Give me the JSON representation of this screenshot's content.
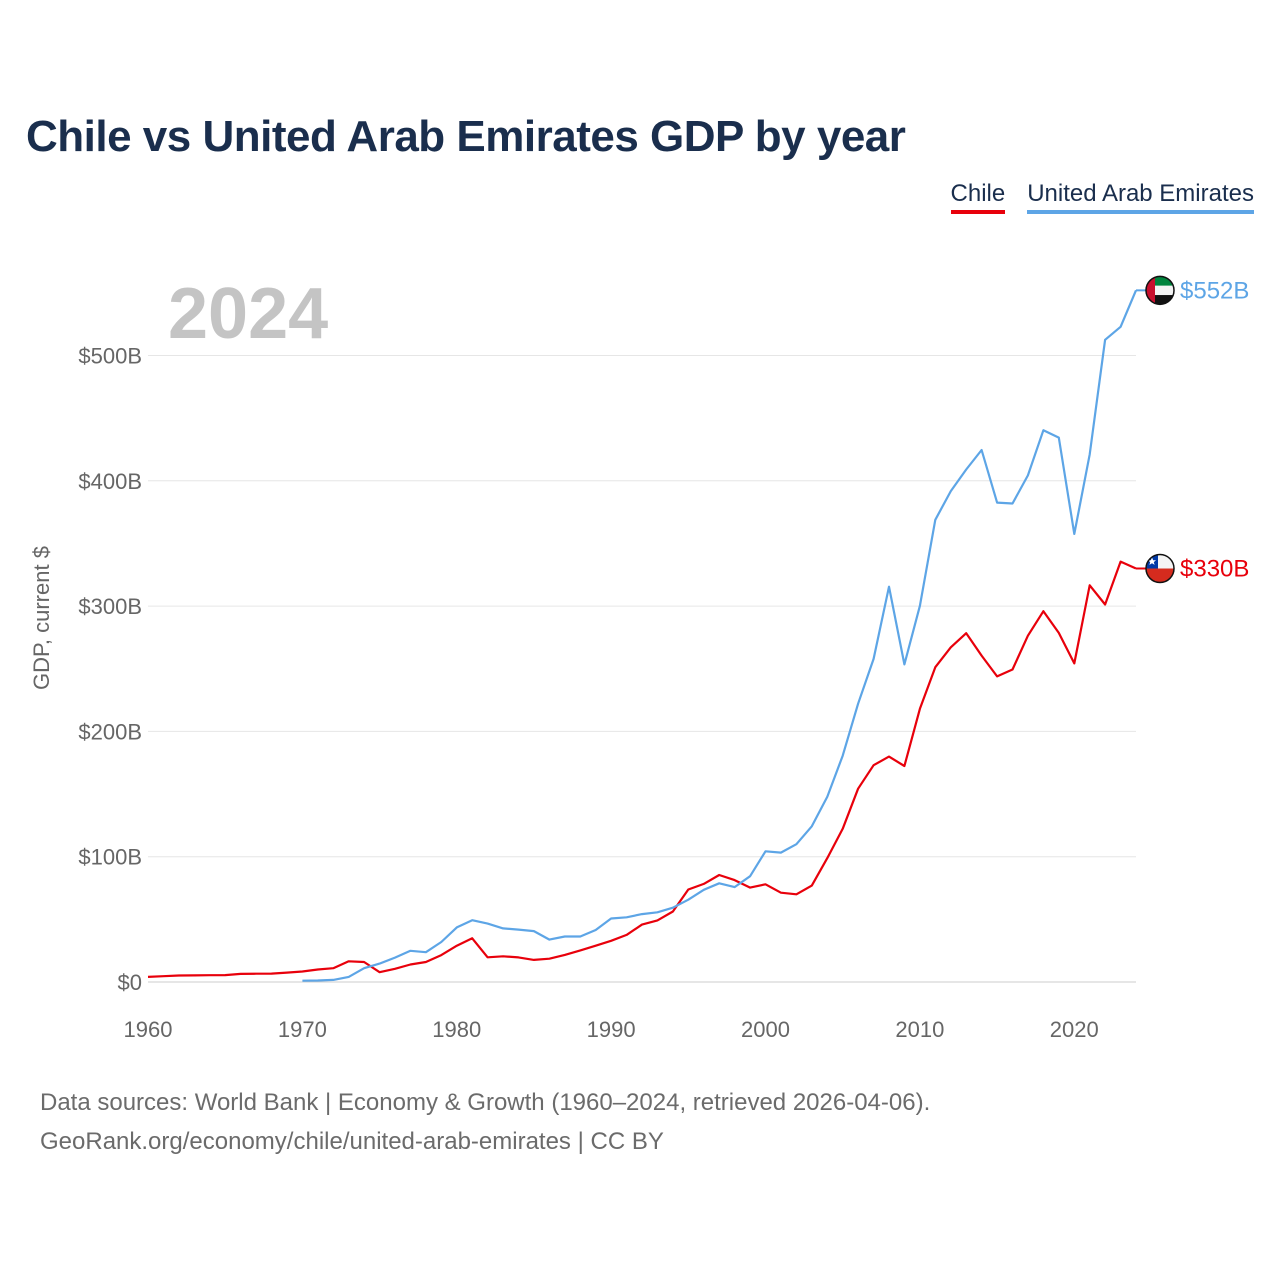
{
  "title": "Chile vs United Arab Emirates GDP by year",
  "legend": [
    {
      "name": "Chile",
      "color": "#e8000b"
    },
    {
      "name": "United Arab Emirates",
      "color": "#5da5e6"
    }
  ],
  "year_label": "2024",
  "footer": {
    "line1": "Data sources: World Bank | Economy & Growth (1960–2024, retrieved 2026-04-06).",
    "line2": "GeoRank.org/economy/chile/united-arab-emirates | CC BY"
  },
  "chart_data": {
    "type": "line",
    "title": "Chile vs United Arab Emirates GDP by year",
    "xlabel": "",
    "ylabel": "GDP, current $",
    "xlim": [
      1960,
      2024
    ],
    "ylim": [
      0,
      550
    ],
    "unit": "billion USD",
    "xticks": [
      1960,
      1970,
      1980,
      1990,
      2000,
      2010,
      2020
    ],
    "xtick_labels": [
      "1960",
      "1970",
      "1980",
      "1990",
      "2000",
      "2010",
      "2020"
    ],
    "yticks": [
      0,
      100,
      200,
      300,
      400,
      500
    ],
    "ytick_labels": [
      "$0",
      "$100B",
      "$200B",
      "$300B",
      "$400B",
      "$500B"
    ],
    "grid": true,
    "series": [
      {
        "name": "Chile",
        "color": "#e8000b",
        "end_label": "$330B",
        "flag": "chile-flag",
        "x": [
          1960,
          1961,
          1962,
          1963,
          1964,
          1965,
          1966,
          1967,
          1968,
          1969,
          1970,
          1971,
          1972,
          1973,
          1974,
          1975,
          1976,
          1977,
          1978,
          1979,
          1980,
          1981,
          1982,
          1983,
          1984,
          1985,
          1986,
          1987,
          1988,
          1989,
          1990,
          1991,
          1992,
          1993,
          1994,
          1995,
          1996,
          1997,
          1998,
          1999,
          2000,
          2001,
          2002,
          2003,
          2004,
          2005,
          2006,
          2007,
          2008,
          2009,
          2010,
          2011,
          2012,
          2013,
          2014,
          2015,
          2016,
          2017,
          2018,
          2019,
          2020,
          2021,
          2022,
          2023,
          2024
        ],
        "values": [
          4.1,
          4.6,
          5.2,
          5.3,
          5.4,
          5.5,
          6.5,
          6.6,
          6.7,
          7.5,
          8.4,
          10,
          11,
          16.5,
          16,
          7.8,
          10.5,
          14,
          16,
          21.5,
          29,
          34.9,
          19.7,
          20.5,
          19.6,
          17.6,
          18.6,
          21.6,
          25.2,
          29,
          32.9,
          37.6,
          45.8,
          49.2,
          56.3,
          73.8,
          78.3,
          85.4,
          81.3,
          75.3,
          78,
          71.3,
          70,
          76.9,
          98.9,
          122.3,
          154.3,
          173,
          179.9,
          172.4,
          218,
          251.2,
          267.1,
          278.4,
          260.5,
          243.9,
          249.4,
          276.4,
          295.9,
          278.6,
          254.3,
          316.6,
          301.3,
          335.5,
          330
        ]
      },
      {
        "name": "United Arab Emirates",
        "color": "#5da5e6",
        "end_label": "$552B",
        "flag": "uae-flag",
        "x": [
          1970,
          1971,
          1972,
          1973,
          1974,
          1975,
          1976,
          1977,
          1978,
          1979,
          1980,
          1981,
          1982,
          1983,
          1984,
          1985,
          1986,
          1987,
          1988,
          1989,
          1990,
          1991,
          1992,
          1993,
          1994,
          1995,
          1996,
          1997,
          1998,
          1999,
          2000,
          2001,
          2002,
          2003,
          2004,
          2005,
          2006,
          2007,
          2008,
          2009,
          2010,
          2011,
          2012,
          2013,
          2014,
          2015,
          2016,
          2017,
          2018,
          2019,
          2020,
          2021,
          2022,
          2023,
          2024
        ],
        "values": [
          1,
          1.2,
          1.7,
          4.1,
          11,
          14.7,
          19.5,
          24.9,
          23.8,
          31.9,
          43.6,
          49.3,
          46.6,
          42.8,
          41.8,
          40.6,
          33.8,
          36.3,
          36.3,
          41.5,
          50.7,
          51.6,
          54.2,
          55.6,
          59.3,
          65.7,
          73.6,
          78.8,
          75.7,
          84.4,
          104.3,
          103.3,
          110,
          124.3,
          147.8,
          180.6,
          222.1,
          257.9,
          315.5,
          253.5,
          300.2,
          368.9,
          391.8,
          409,
          424.6,
          382.6,
          381.9,
          404.3,
          440.4,
          434.5,
          357.6,
          421.1,
          512.5,
          522.9,
          552
        ]
      }
    ]
  }
}
